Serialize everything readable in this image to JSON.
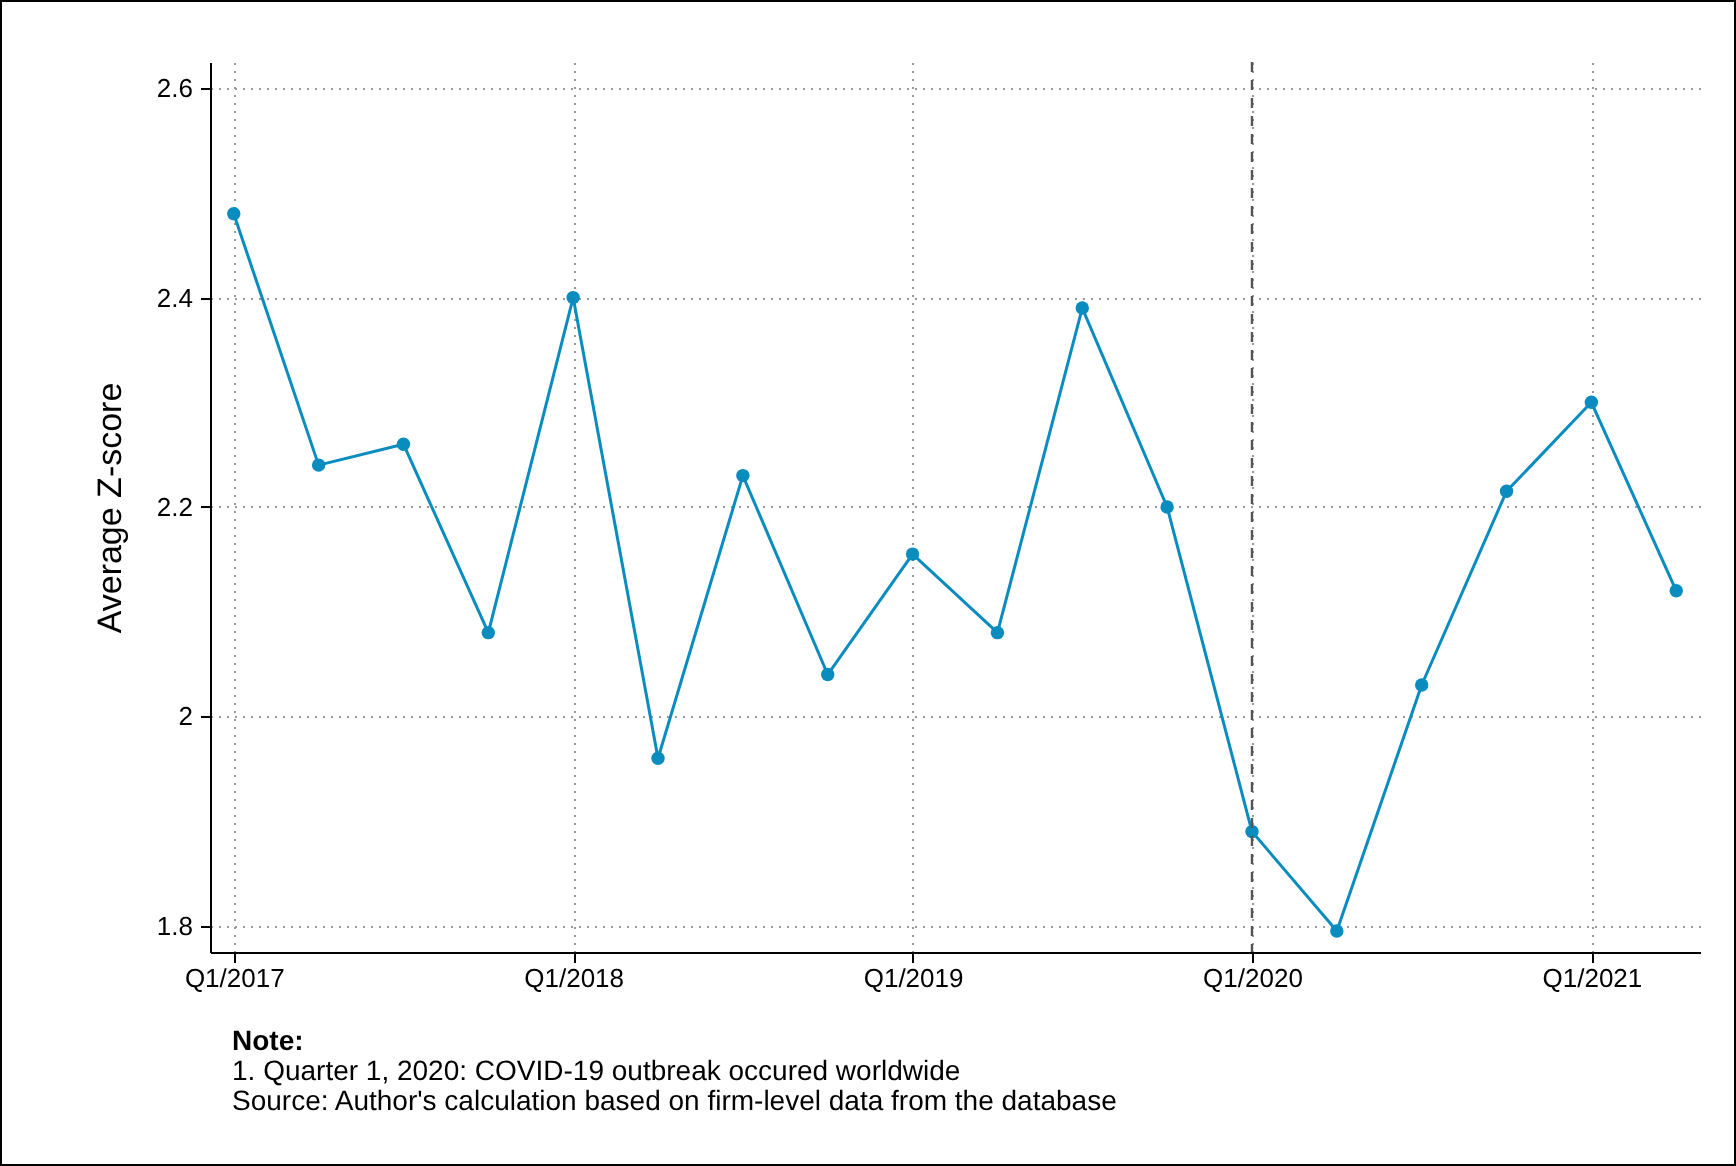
{
  "chart_data": {
    "type": "line",
    "ylabel": "Average Z-score",
    "categories": [
      "Q1/2017",
      null,
      null,
      null,
      "Q1/2018",
      null,
      null,
      null,
      "Q1/2019",
      null,
      null,
      null,
      "Q1/2020",
      null,
      null,
      null,
      "Q1/2021",
      null
    ],
    "series": [
      {
        "color": "#0a8cbf",
        "values": [
          2.48,
          2.24,
          2.26,
          2.08,
          2.4,
          1.96,
          2.23,
          2.04,
          2.155,
          2.08,
          2.39,
          2.2,
          1.89,
          1.795,
          2.03,
          2.215,
          2.3,
          2.12
        ]
      }
    ],
    "ylim": [
      1.775,
      2.625
    ],
    "yticks": [
      1.8,
      2,
      2.2,
      2.4,
      2.6
    ],
    "grid": true,
    "marker": "circle",
    "line_style": "solid",
    "ref_lines": [
      {
        "axis": "x",
        "value": "Q1/2020",
        "color": "#555555",
        "line_style": "dashed"
      }
    ],
    "annotations": [
      "Note:",
      "1. Quarter 1, 2020: COVID-19 outbreak occured worldwide",
      "Source: Author's calculation based on firm-level data from the database"
    ]
  }
}
